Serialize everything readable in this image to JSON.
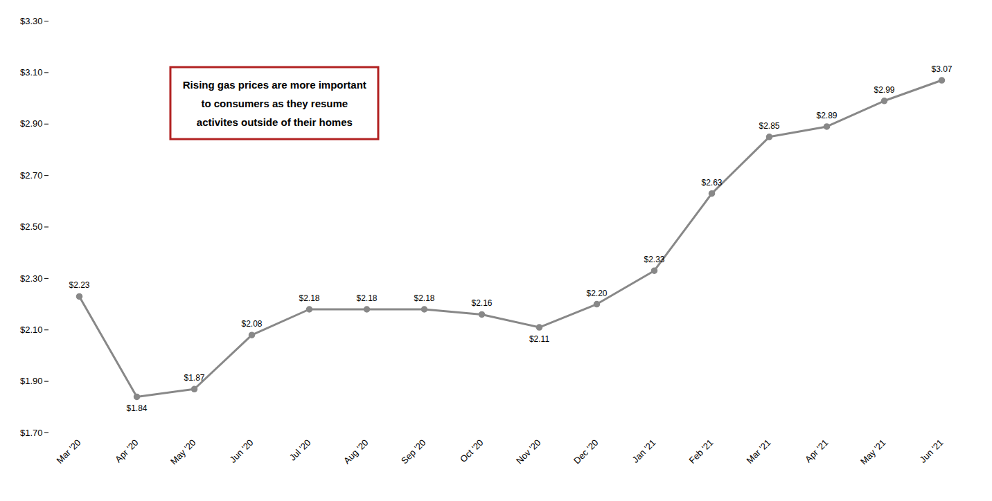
{
  "chart_data": {
    "type": "line",
    "categories": [
      "Mar '20",
      "Apr '20",
      "May '20",
      "Jun '20",
      "Jul '20",
      "Aug '20",
      "Sep '20",
      "Oct '20",
      "Nov '20",
      "Dec '20",
      "Jan '21",
      "Feb '21",
      "Mar '21",
      "Apr '21",
      "May '21",
      "Jun '21"
    ],
    "values": [
      2.23,
      1.84,
      1.87,
      2.08,
      2.18,
      2.18,
      2.18,
      2.16,
      2.11,
      2.2,
      2.33,
      2.63,
      2.85,
      2.89,
      2.99,
      3.07
    ],
    "value_labels": [
      "$2.23",
      "$1.84",
      "$1.87",
      "$2.08",
      "$2.18",
      "$2.18",
      "$2.18",
      "$2.16",
      "$2.11",
      "$2.20",
      "$2.33",
      "$2.63",
      "$2.85",
      "$2.89",
      "$2.99",
      "$3.07"
    ],
    "color": "#888888",
    "marker": "o",
    "data_labels": true,
    "grid": false,
    "ylim": [
      1.7,
      3.3
    ],
    "yticks": [
      {
        "value": 1.7,
        "label": "$1.70"
      },
      {
        "value": 1.9,
        "label": "$1.90"
      },
      {
        "value": 2.1,
        "label": "$2.10"
      },
      {
        "value": 2.3,
        "label": "$2.30"
      },
      {
        "value": 2.5,
        "label": "$2.50"
      },
      {
        "value": 2.7,
        "label": "$2.70"
      },
      {
        "value": 2.9,
        "label": "$2.90"
      },
      {
        "value": 3.1,
        "label": "$3.10"
      },
      {
        "value": 3.3,
        "label": "$3.30"
      }
    ],
    "annotations": [
      {
        "text": "Rising gas prices are more important\nto consumers as they resume\nactivites outside of their homes",
        "color": "#b22222"
      }
    ]
  }
}
